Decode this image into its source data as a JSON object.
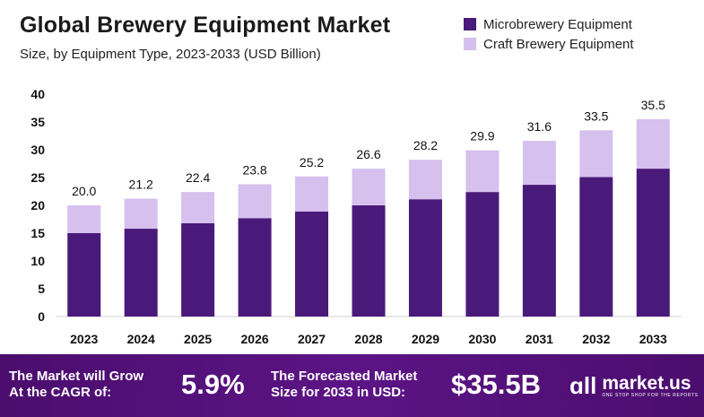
{
  "header": {
    "title": "Global Brewery Equipment Market",
    "subtitle": "Size, by Equipment Type, 2023-2033 (USD Billion)"
  },
  "legend": [
    {
      "label": "Microbrewery Equipment",
      "color": "#4a1a7a"
    },
    {
      "label": "Craft Brewery Equipment",
      "color": "#d6c0ee"
    }
  ],
  "chart_data": {
    "type": "bar",
    "stacked": true,
    "categories": [
      "2023",
      "2024",
      "2025",
      "2026",
      "2027",
      "2028",
      "2029",
      "2030",
      "2031",
      "2032",
      "2033"
    ],
    "series": [
      {
        "name": "Microbrewery Equipment",
        "color": "#4a1a7a",
        "values": [
          15.0,
          15.8,
          16.8,
          17.7,
          18.9,
          20.0,
          21.1,
          22.4,
          23.7,
          25.1,
          26.6
        ]
      },
      {
        "name": "Craft Brewery Equipment",
        "color": "#d6c0ee",
        "values": [
          5.0,
          5.4,
          5.6,
          6.1,
          6.3,
          6.6,
          7.1,
          7.5,
          7.9,
          8.4,
          8.9
        ]
      }
    ],
    "totals": [
      "20.0",
      "21.2",
      "22.4",
      "23.8",
      "25.2",
      "26.6",
      "28.2",
      "29.9",
      "31.6",
      "33.5",
      "35.5"
    ],
    "ylim": [
      0,
      40
    ],
    "yticks": [
      "0",
      "5",
      "10",
      "15",
      "20",
      "25",
      "30",
      "35",
      "40"
    ],
    "grid": false,
    "legend_position": "top-right"
  },
  "footer": {
    "cagr_label_line1": "The Market will Grow",
    "cagr_label_line2": "At the CAGR of:",
    "cagr_value": "5.9%",
    "forecast_label_line1": "The Forecasted Market",
    "forecast_label_line2": "Size for 2033 in USD:",
    "forecast_value": "$35.5B",
    "logo_name": "market.us",
    "logo_tagline": "ONE STOP SHOP FOR THE REPORTS"
  }
}
